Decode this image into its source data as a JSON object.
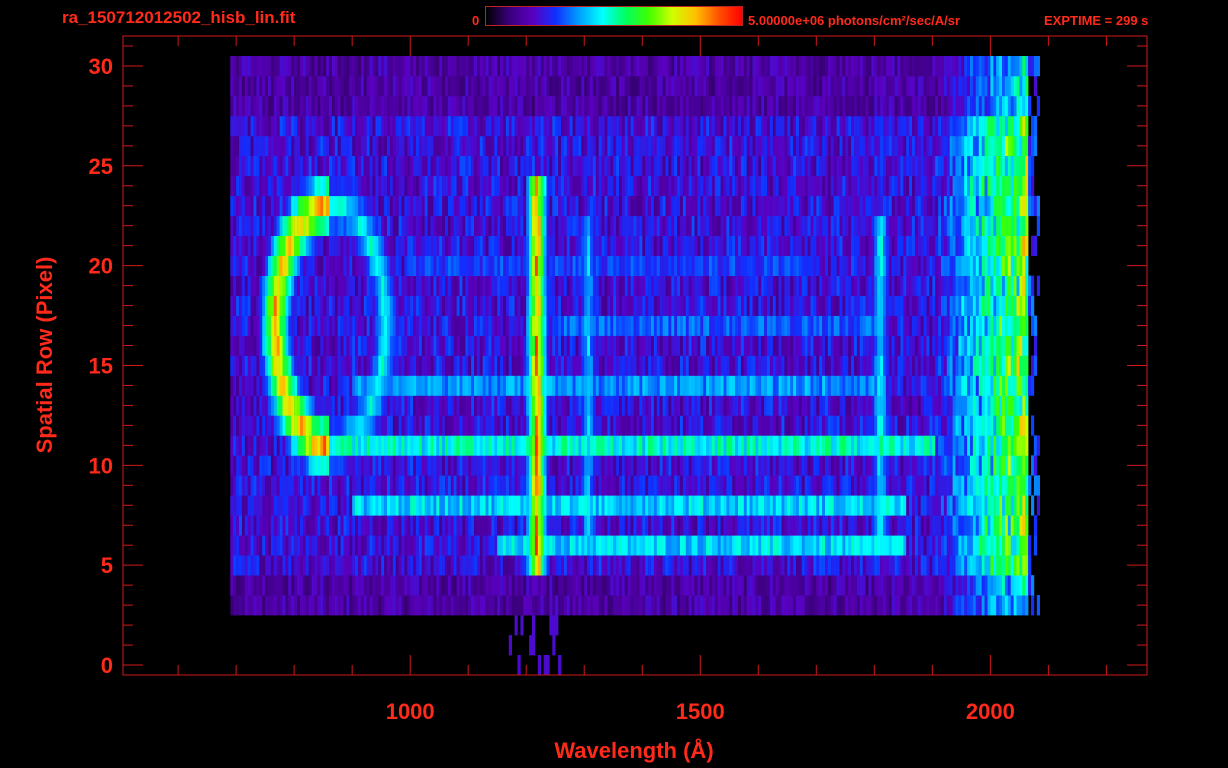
{
  "header": {
    "file_title": "ra_150712012502_hisb_lin.fit",
    "colorbar_min": "0",
    "colorbar_max": "5.00000e+06 photons/cm²/sec/A/sr",
    "exptime": "EXPTIME = 299 s"
  },
  "colors": {
    "text": "#ff2a1a",
    "axis": "#d01818",
    "background": "#000000",
    "colormap": [
      "#000000",
      "#3a007a",
      "#5a00c0",
      "#1030ff",
      "#00a0ff",
      "#00ffff",
      "#00ff60",
      "#40ff00",
      "#d0ff00",
      "#ffc000",
      "#ff5000",
      "#ff0000"
    ]
  },
  "chart_data": {
    "type": "heatmap",
    "title": "ra_150712012502_hisb_lin.fit",
    "xlabel": "Wavelength (Å)",
    "ylabel": "Spatial Row (Pixel)",
    "xlim": [
      505,
      2270
    ],
    "ylim": [
      -0.5,
      31.5
    ],
    "xticks": [
      1000,
      1500,
      2000
    ],
    "yticks": [
      0,
      5,
      10,
      15,
      20,
      25,
      30
    ],
    "grid": false,
    "colorbar": {
      "min": 0,
      "max": 5000000,
      "units": "photons/cm²/sec/A/sr",
      "position": "top"
    },
    "features": {
      "emission_lines": [
        {
          "wavelength": 1216,
          "rows": [
            5,
            24
          ],
          "peak_level": 0.95
        },
        {
          "wavelength": 1304,
          "rows": [
            6,
            22
          ],
          "peak_level": 0.45
        },
        {
          "wavelength": 1808,
          "rows": [
            6,
            22
          ],
          "peak_level": 0.5
        }
      ],
      "horizontal_bands": [
        {
          "row": 11,
          "from": 830,
          "to": 1900,
          "level": 0.5
        },
        {
          "row": 8,
          "from": 900,
          "to": 1850,
          "level": 0.45
        },
        {
          "row": 6,
          "from": 1150,
          "to": 1850,
          "level": 0.45
        },
        {
          "row": 14,
          "from": 900,
          "to": 1800,
          "level": 0.38
        },
        {
          "row": 17,
          "from": 1250,
          "to": 1800,
          "level": 0.33
        },
        {
          "row": 20,
          "from": 1000,
          "to": 1700,
          "level": 0.3
        }
      ],
      "ring": {
        "center_wavelength": 860,
        "center_row": 17,
        "radius_wavelength": 95,
        "radius_rows": 6,
        "peak_level": 0.9
      },
      "red_edge": {
        "from": 1900,
        "to": 2062,
        "level": 0.55
      }
    }
  }
}
